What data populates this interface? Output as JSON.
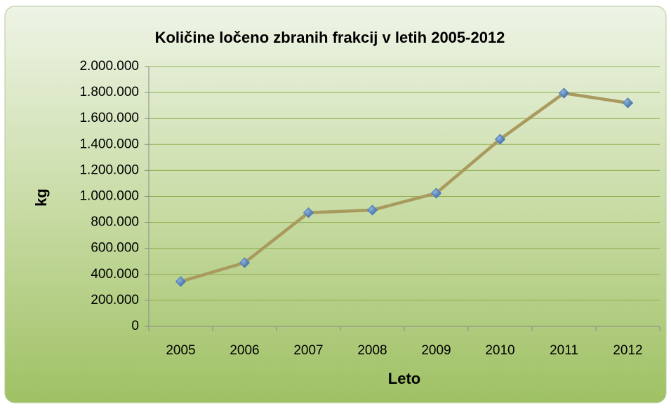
{
  "chart_data": {
    "type": "line",
    "title": "Količine ločeno zbranih frakcij v letih 2005-2012",
    "x_label": "Leto",
    "y_label": "kg",
    "categories": [
      "2005",
      "2006",
      "2007",
      "2008",
      "2009",
      "2010",
      "2011",
      "2012"
    ],
    "values": [
      345000,
      490000,
      875000,
      895000,
      1025000,
      1440000,
      1795000,
      1720000
    ],
    "color": "#a99a5e",
    "marker_color": "#4f81bd",
    "ylim": [
      0,
      2000000
    ],
    "yticks": [
      0,
      {
        "value": 200000,
        "label": "200.000"
      },
      {
        "value": 400000,
        "label": "400.000"
      },
      {
        "value": 600000,
        "label": "600.000"
      },
      {
        "value": 800000,
        "label": "800.000"
      },
      {
        "value": 1000000,
        "label": "1.000.000"
      },
      {
        "value": 1200000,
        "label": "1.200.000"
      },
      {
        "value": 1400000,
        "label": "1.400.000"
      },
      {
        "value": 1600000,
        "label": "1.600.000"
      },
      {
        "value": 1800000,
        "label": "1.800.000"
      },
      {
        "value": 2000000,
        "label": "2.000.000"
      }
    ],
    "grid": true
  }
}
